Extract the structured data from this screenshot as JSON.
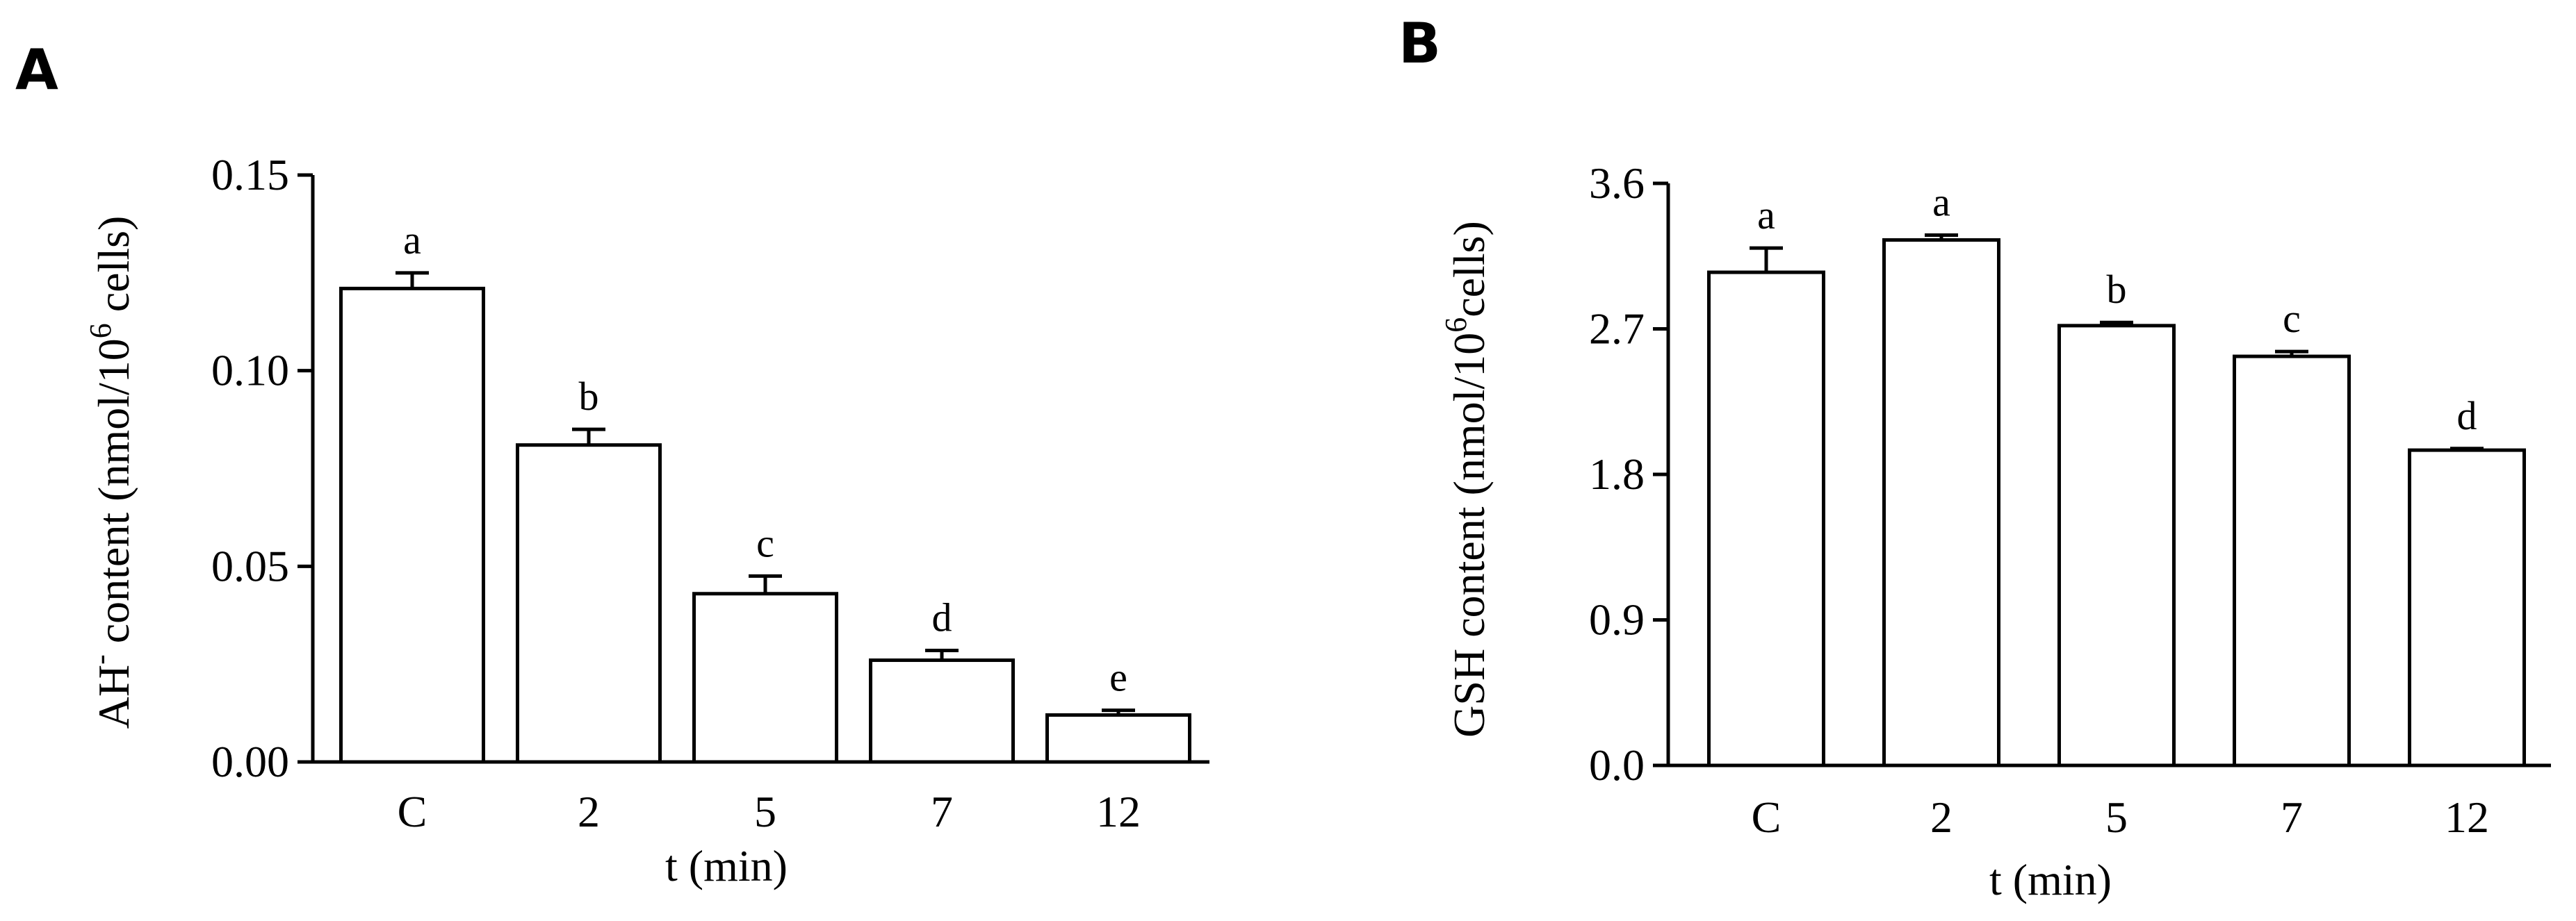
{
  "figure": {
    "panels": [
      "A",
      "B"
    ]
  },
  "chart_data": [
    {
      "panel": "A",
      "type": "bar",
      "categories": [
        "C",
        "2",
        "5",
        "7",
        "12"
      ],
      "values": [
        0.121,
        0.081,
        0.043,
        0.026,
        0.012
      ],
      "errors": [
        0.004,
        0.004,
        0.0045,
        0.0025,
        0.0012
      ],
      "significance_letters": [
        "a",
        "b",
        "c",
        "d",
        "e"
      ],
      "ylim": [
        0,
        0.15
      ],
      "yticks": [
        "0.00",
        "0.05",
        "0.10",
        "0.15"
      ],
      "ytick_values": [
        0,
        0.05,
        0.1,
        0.15
      ],
      "xlabel": "t (min)",
      "ylabel": {
        "prefix": "AH",
        "superscript": "-",
        "middle": " content (nmol/10",
        "exponent": "6",
        "suffix": " cells)"
      },
      "bar_fill": "#ffffff",
      "bar_stroke": "#000000",
      "grid": false,
      "legend": false
    },
    {
      "panel": "B",
      "type": "bar",
      "categories": [
        "C",
        "2",
        "5",
        "7",
        "12"
      ],
      "values": [
        3.05,
        3.25,
        2.72,
        2.53,
        1.95
      ],
      "errors": [
        0.15,
        0.03,
        0.02,
        0.03,
        0.01
      ],
      "significance_letters": [
        "a",
        "a",
        "b",
        "c",
        "d"
      ],
      "ylim": [
        0,
        3.6
      ],
      "yticks": [
        "0.0",
        "0.9",
        "1.8",
        "2.7",
        "3.6"
      ],
      "ytick_values": [
        0,
        0.9,
        1.8,
        2.7,
        3.6
      ],
      "xlabel": "t (min)",
      "ylabel": {
        "prefix": "GSH content (nmol/10",
        "exponent": "6",
        "suffix": "cells)"
      },
      "bar_fill": "#ffffff",
      "bar_stroke": "#000000",
      "grid": false,
      "legend": false
    }
  ]
}
